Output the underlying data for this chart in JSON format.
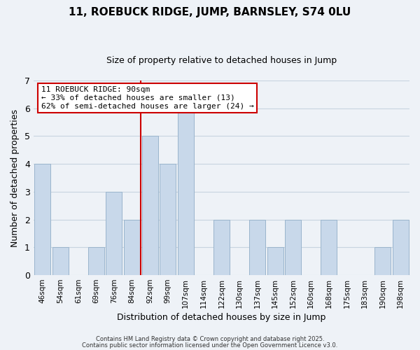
{
  "title_line1": "11, ROEBUCK RIDGE, JUMP, BARNSLEY, S74 0LU",
  "title_line2": "Size of property relative to detached houses in Jump",
  "xlabel": "Distribution of detached houses by size in Jump",
  "ylabel": "Number of detached properties",
  "bar_labels": [
    "46sqm",
    "54sqm",
    "61sqm",
    "69sqm",
    "76sqm",
    "84sqm",
    "92sqm",
    "99sqm",
    "107sqm",
    "114sqm",
    "122sqm",
    "130sqm",
    "137sqm",
    "145sqm",
    "152sqm",
    "160sqm",
    "168sqm",
    "175sqm",
    "183sqm",
    "190sqm",
    "198sqm"
  ],
  "bar_values": [
    4,
    1,
    0,
    1,
    3,
    2,
    5,
    4,
    6,
    0,
    2,
    0,
    2,
    1,
    2,
    0,
    2,
    0,
    0,
    1,
    2
  ],
  "bar_color": "#c8d8ea",
  "bar_edge_color": "#9ab4cc",
  "vline_x": 5.5,
  "vline_color": "#cc0000",
  "ylim": [
    0,
    7
  ],
  "yticks": [
    0,
    1,
    2,
    3,
    4,
    5,
    6,
    7
  ],
  "annotation_title": "11 ROEBUCK RIDGE: 90sqm",
  "annotation_line2": "← 33% of detached houses are smaller (13)",
  "annotation_line3": "62% of semi-detached houses are larger (24) →",
  "annotation_box_color": "#ffffff",
  "annotation_border_color": "#cc0000",
  "grid_color": "#c8d4e0",
  "bg_color": "#eef2f7",
  "footer_line1": "Contains HM Land Registry data © Crown copyright and database right 2025.",
  "footer_line2": "Contains public sector information licensed under the Open Government Licence v3.0.",
  "title_fontsize": 11,
  "subtitle_fontsize": 9
}
